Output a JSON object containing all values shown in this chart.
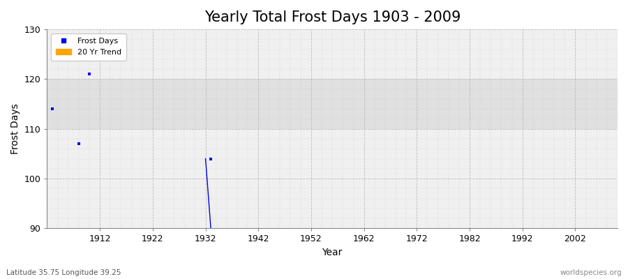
{
  "title": "Yearly Total Frost Days 1903 - 2009",
  "xlabel": "Year",
  "ylabel": "Frost Days",
  "ylim": [
    90,
    130
  ],
  "xlim": [
    1902,
    2010
  ],
  "xticks": [
    1912,
    1922,
    1932,
    1942,
    1952,
    1962,
    1972,
    1982,
    1992,
    2002
  ],
  "yticks": [
    90,
    100,
    110,
    120,
    130
  ],
  "frost_years": [
    1903,
    1908,
    1910,
    1933
  ],
  "frost_values": [
    114,
    107,
    121,
    104
  ],
  "trend_x": [
    1932,
    1933
  ],
  "trend_y": [
    104,
    90
  ],
  "point_color": "#0000ee",
  "trend_color": "#0000ee",
  "bg_color": "#ffffff",
  "plot_bg_color": "#f0f0f0",
  "band_y1": 110,
  "band_y2": 120,
  "band_color": "#e0e0e0",
  "grid_color": "#bbbbbb",
  "legend_frost_color": "#0000ee",
  "legend_trend_color": "#ffa500",
  "subtitle_left": "Latitude 35.75 Longitude 39.25",
  "subtitle_right": "worldspecies.org",
  "title_fontsize": 15,
  "label_fontsize": 10,
  "tick_fontsize": 9,
  "point_size": 12
}
